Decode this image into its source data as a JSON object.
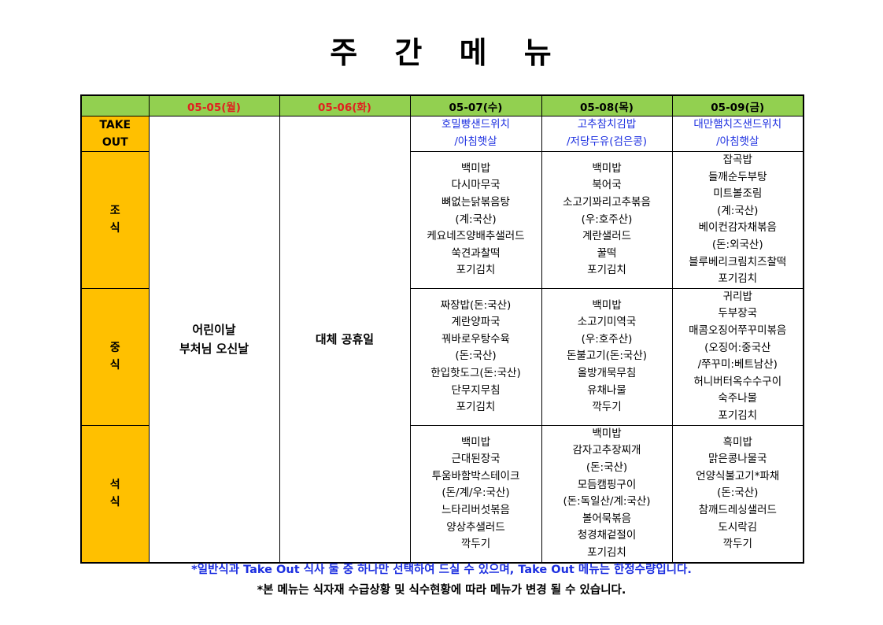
{
  "title": "주 간 메 뉴",
  "days": [
    {
      "label": "05-05(월)",
      "holiday": true
    },
    {
      "label": "05-06(화)",
      "holiday": true
    },
    {
      "label": "05-07(수)",
      "holiday": false
    },
    {
      "label": "05-08(목)",
      "holiday": false
    },
    {
      "label": "05-09(금)",
      "holiday": false
    }
  ],
  "rows": {
    "takeout": [
      "TAKE",
      "OUT"
    ],
    "breakfast": [
      "조",
      "식"
    ],
    "lunch": [
      "중",
      "식"
    ],
    "dinner": [
      "석",
      "식"
    ]
  },
  "holidays": {
    "d0": [
      "어린이날",
      "부처님 오신날"
    ],
    "d1": [
      "대체 공휴일"
    ]
  },
  "menu": {
    "takeout": [
      [
        "호밀빵샌드위치",
        "/아침햇살"
      ],
      [
        "고추참치김밥",
        "/저당두유(검은콩)"
      ],
      [
        "대만햄치즈샌드위치",
        "/아침햇살"
      ]
    ],
    "breakfast": [
      [
        "백미밥",
        "다시마무국",
        "뼈없는닭볶음탕",
        "(계:국산)",
        "케요네즈양배추샐러드",
        "쑥견과찰떡",
        "포기김치"
      ],
      [
        "백미밥",
        "북어국",
        "소고기꽈리고추볶음",
        "(우:호주산)",
        "계란샐러드",
        "꿀떡",
        "포기김치"
      ],
      [
        "잡곡밥",
        "들깨순두부탕",
        "미트볼조림",
        "(계:국산)",
        "베이컨감자채볶음",
        "(돈:외국산)",
        "블루베리크림치즈찰떡",
        "포기김치"
      ]
    ],
    "lunch": [
      [
        "짜장밥(돈:국산)",
        "계란양파국",
        "꿔바로우탕수육",
        "(돈:국산)",
        "한입핫도그(돈:국산)",
        "단무지무침",
        "포기김치"
      ],
      [
        "백미밥",
        "소고기미역국",
        "(우:호주산)",
        "돈불고기(돈:국산)",
        "올방개묵무침",
        "유채나물",
        "깍두기"
      ],
      [
        "귀리밥",
        "두부장국",
        "매콤오징어쭈꾸미볶음",
        "(오징어:중국산",
        "/쭈꾸미:베트남산)",
        "허니버터옥수수구이",
        "숙주나물",
        "포기김치"
      ]
    ],
    "dinner": [
      [
        "백미밥",
        "근대된장국",
        "투움바함박스테이크",
        "(돈/계/우:국산)",
        "느타리버섯볶음",
        "양상추샐러드",
        "깍두기"
      ],
      [
        "백미밥",
        "감자고추장찌개",
        "(돈:국산)",
        "모듬캠핑구이",
        "(돈:독일산/계:국산)",
        "볼어묵볶음",
        "청경채겉절이",
        "포기김치"
      ],
      [
        "흑미밥",
        "맑은콩나물국",
        "언양식불고기*파채",
        "(돈:국산)",
        "참깨드레싱샐러드",
        "도시락김",
        "깍두기"
      ]
    ]
  },
  "notes": [
    "*일반식과 Take Out 식사 둘 중 하나만 선택하여 드실 수 있으며, Take Out 메뉴는 한정수량입니다.",
    "*본 메뉴는 식자재 수급상황 및 식수현황에 따라 메뉴가 변경 될 수 있습니다."
  ],
  "colors": {
    "header": "#92d050",
    "side": "#ffc000",
    "holiday": "#e02020",
    "takeout": "#1c2fe0"
  }
}
